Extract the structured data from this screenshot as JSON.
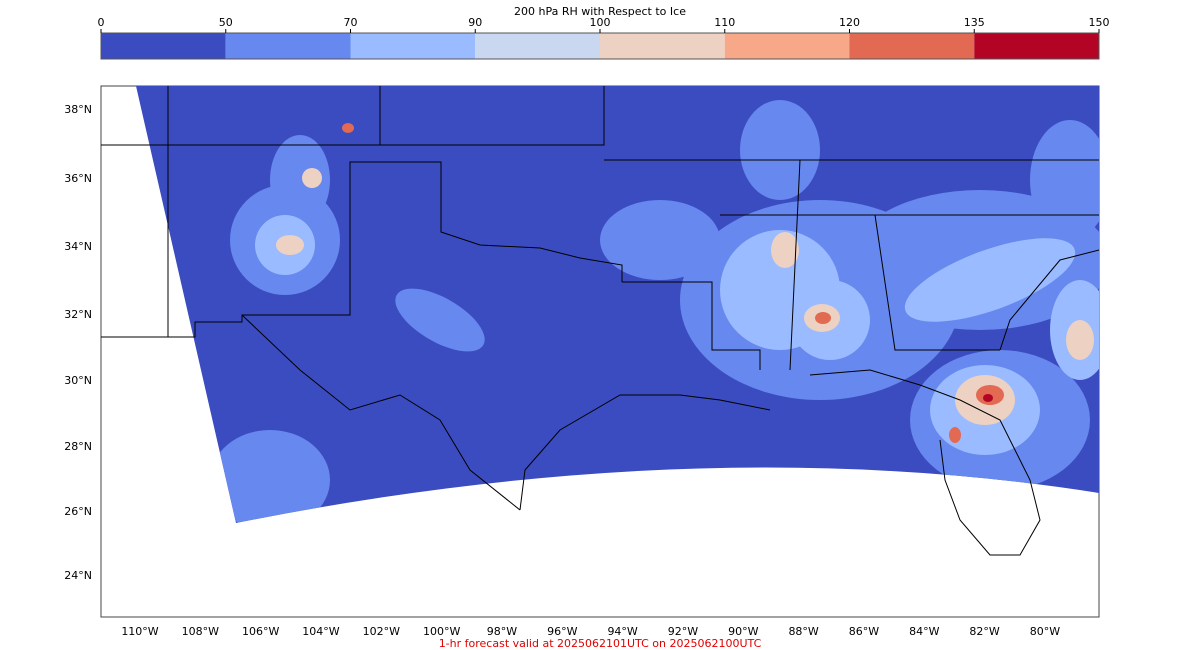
{
  "colorbar": {
    "title": "200 hPa RH with Respect to Ice",
    "ticks": [
      0,
      50,
      70,
      90,
      100,
      110,
      120,
      135,
      150
    ],
    "colors": [
      "#3b4cc0",
      "#6788ee",
      "#9abbff",
      "#c9d7f0",
      "#edd1c2",
      "#f7a889",
      "#e26952",
      "#b40426"
    ]
  },
  "map": {
    "lat_labels": [
      "38°N",
      "36°N",
      "34°N",
      "32°N",
      "30°N",
      "28°N",
      "26°N",
      "24°N"
    ],
    "lon_labels": [
      "110°W",
      "108°W",
      "106°W",
      "104°W",
      "102°W",
      "100°W",
      "98°W",
      "96°W",
      "94°W",
      "92°W",
      "90°W",
      "88°W",
      "86°W",
      "84°W",
      "82°W",
      "80°W"
    ]
  },
  "footer": "1-hr forecast valid at 2025062101UTC on 2025062100UTC"
}
